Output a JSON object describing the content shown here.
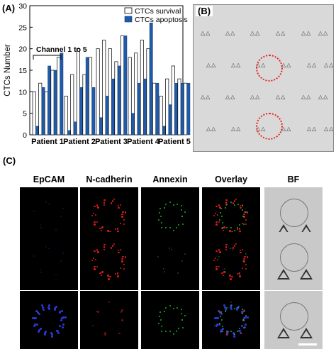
{
  "panel_labels": {
    "a": "(A)",
    "b": "(B)",
    "c": "(C)"
  },
  "chart_data": {
    "type": "bar",
    "title": "",
    "xlabel": "",
    "ylabel": "CTCs Number",
    "ylim": [
      0,
      30
    ],
    "yticks": [
      0,
      5,
      10,
      15,
      20,
      25,
      30
    ],
    "groups": [
      "Patient 1",
      "Patient 2",
      "Patient 3",
      "Patient 4",
      "Patient 5"
    ],
    "annotation": "Channel 1 to 5",
    "series": [
      {
        "name": "CTCs survival",
        "color": "#ffffff",
        "values": [
          [
            10,
            12,
            10,
            15,
            18
          ],
          [
            9,
            14,
            20,
            14,
            18
          ],
          [
            20,
            22,
            20,
            17,
            23
          ],
          [
            18,
            19,
            22,
            20,
            12
          ],
          [
            9,
            13,
            16,
            13,
            12
          ]
        ]
      },
      {
        "name": "CTCs apoptosis",
        "color": "#1f5ba8",
        "values": [
          [
            2,
            11,
            16,
            15,
            19
          ],
          [
            1,
            3,
            11,
            18,
            11
          ],
          [
            4,
            9,
            13,
            16,
            23
          ],
          [
            5,
            12,
            13,
            26,
            12
          ],
          [
            2,
            7,
            12,
            12,
            12
          ]
        ]
      }
    ]
  },
  "micro_columns": [
    "EpCAM",
    "N-cadherin",
    "Annexin",
    "Overlay",
    "BF"
  ],
  "bf_label": "(B)",
  "colors": {
    "epcam": "#2a3ad6",
    "ncad": "#e31b1b",
    "annexin": "#1fbf2e",
    "ring": "#e8231e"
  }
}
